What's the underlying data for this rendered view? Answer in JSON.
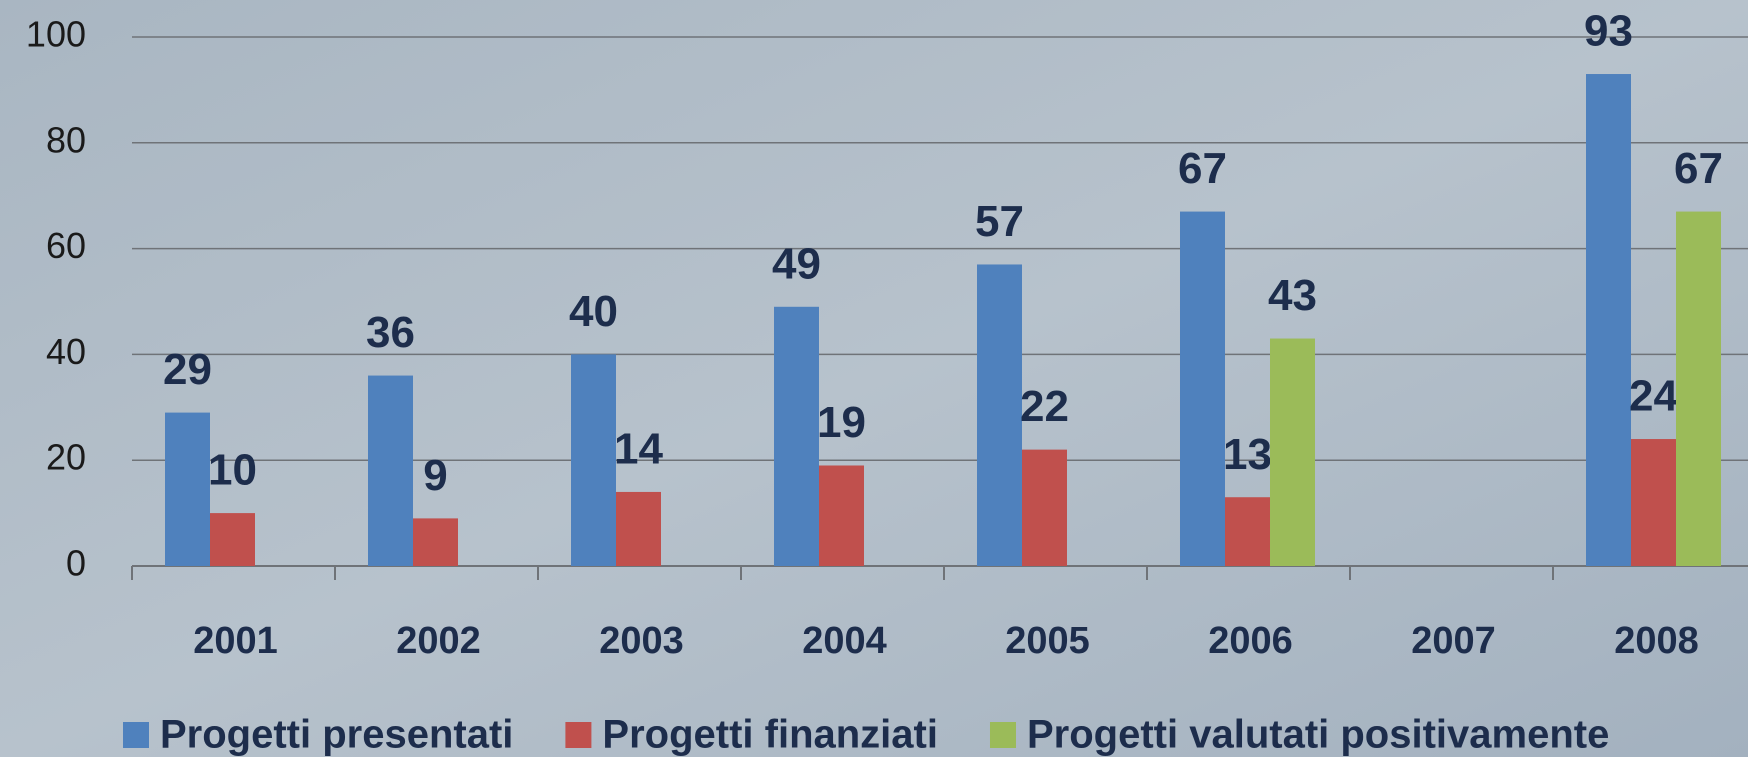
{
  "chart_data": {
    "type": "bar",
    "categories": [
      "2001",
      "2002",
      "2003",
      "2004",
      "2005",
      "2006",
      "2007",
      "2008"
    ],
    "series": [
      {
        "name": "Progetti presentati",
        "color": "#4f81bd",
        "values": [
          29,
          36,
          40,
          49,
          57,
          67,
          null,
          93
        ]
      },
      {
        "name": "Progetti finanziati",
        "color": "#c0504d",
        "values": [
          10,
          9,
          14,
          19,
          22,
          13,
          null,
          24
        ]
      },
      {
        "name": "Progetti valutati positivamente",
        "color": "#9bbb59",
        "values": [
          null,
          null,
          null,
          null,
          null,
          43,
          null,
          67
        ]
      }
    ],
    "ylim": [
      0,
      100
    ],
    "yticks": [
      0,
      20,
      40,
      60,
      80,
      100
    ],
    "grid": true,
    "legend": "bottom"
  }
}
